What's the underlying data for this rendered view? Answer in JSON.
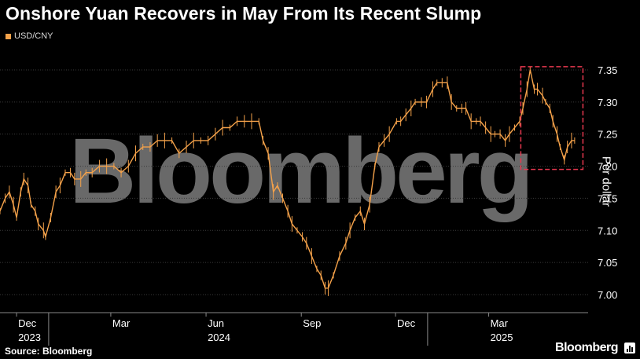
{
  "title": "Onshore Yuan Recovers in May From Its Recent Slump",
  "legend": {
    "label": "USD/CNY",
    "color": "#f5a24a"
  },
  "source": "Source: Bloomberg",
  "brand": "Bloomberg",
  "watermark": "Bloomberg",
  "chart_data": {
    "type": "line",
    "title": "Onshore Yuan Recovers in May From Its Recent Slump",
    "ylabel": "Per dollar",
    "ylim": [
      6.98,
      7.37
    ],
    "y_ticks": [
      7.0,
      7.05,
      7.1,
      7.15,
      7.2,
      7.25,
      7.3,
      7.35
    ],
    "y_tick_labels": [
      "7.00",
      "7.05",
      "7.10",
      "7.15",
      "7.20",
      "7.25",
      "7.30",
      "7.35"
    ],
    "x_ticks": [
      {
        "month": "Dec",
        "year": "2023",
        "date": "2023-12-01"
      },
      {
        "month": "Mar",
        "year": "",
        "date": "2024-03-01"
      },
      {
        "month": "Jun",
        "year": "2024",
        "date": "2024-06-01"
      },
      {
        "month": "Sep",
        "year": "",
        "date": "2024-09-01"
      },
      {
        "month": "Dec",
        "year": "",
        "date": "2024-12-01"
      },
      {
        "month": "Mar",
        "year": "2025",
        "date": "2025-03-01"
      }
    ],
    "grid": true,
    "legend": "top-left",
    "highlight": {
      "x_start": "2025-04-01",
      "x_end": "2025-05-31",
      "y_start": 7.195,
      "y_end": 7.355,
      "color": "#e8384f"
    },
    "series": [
      {
        "name": "USD/CNY",
        "color": "#f5a24a",
        "points": [
          [
            "2023-11-15",
            7.13
          ],
          [
            "2023-11-20",
            7.15
          ],
          [
            "2023-11-24",
            7.16
          ],
          [
            "2023-11-28",
            7.14
          ],
          [
            "2023-12-01",
            7.12
          ],
          [
            "2023-12-05",
            7.16
          ],
          [
            "2023-12-08",
            7.18
          ],
          [
            "2023-12-12",
            7.17
          ],
          [
            "2023-12-15",
            7.14
          ],
          [
            "2023-12-19",
            7.13
          ],
          [
            "2023-12-22",
            7.11
          ],
          [
            "2023-12-27",
            7.1
          ],
          [
            "2023-12-29",
            7.09
          ],
          [
            "2024-01-03",
            7.12
          ],
          [
            "2024-01-08",
            7.16
          ],
          [
            "2024-01-12",
            7.17
          ],
          [
            "2024-01-17",
            7.19
          ],
          [
            "2024-01-22",
            7.19
          ],
          [
            "2024-01-26",
            7.18
          ],
          [
            "2024-02-01",
            7.18
          ],
          [
            "2024-02-06",
            7.19
          ],
          [
            "2024-02-12",
            7.19
          ],
          [
            "2024-02-19",
            7.2
          ],
          [
            "2024-02-26",
            7.2
          ],
          [
            "2024-03-04",
            7.2
          ],
          [
            "2024-03-11",
            7.19
          ],
          [
            "2024-03-18",
            7.2
          ],
          [
            "2024-03-25",
            7.22
          ],
          [
            "2024-04-01",
            7.23
          ],
          [
            "2024-04-08",
            7.23
          ],
          [
            "2024-04-15",
            7.24
          ],
          [
            "2024-04-22",
            7.24
          ],
          [
            "2024-04-29",
            7.24
          ],
          [
            "2024-05-06",
            7.22
          ],
          [
            "2024-05-13",
            7.23
          ],
          [
            "2024-05-20",
            7.24
          ],
          [
            "2024-05-27",
            7.24
          ],
          [
            "2024-06-03",
            7.24
          ],
          [
            "2024-06-10",
            7.25
          ],
          [
            "2024-06-17",
            7.26
          ],
          [
            "2024-06-24",
            7.26
          ],
          [
            "2024-07-01",
            7.27
          ],
          [
            "2024-07-08",
            7.27
          ],
          [
            "2024-07-15",
            7.27
          ],
          [
            "2024-07-22",
            7.27
          ],
          [
            "2024-07-26",
            7.24
          ],
          [
            "2024-07-31",
            7.22
          ],
          [
            "2024-08-05",
            7.16
          ],
          [
            "2024-08-09",
            7.17
          ],
          [
            "2024-08-14",
            7.15
          ],
          [
            "2024-08-19",
            7.13
          ],
          [
            "2024-08-23",
            7.11
          ],
          [
            "2024-08-28",
            7.1
          ],
          [
            "2024-09-02",
            7.09
          ],
          [
            "2024-09-06",
            7.08
          ],
          [
            "2024-09-11",
            7.06
          ],
          [
            "2024-09-16",
            7.04
          ],
          [
            "2024-09-20",
            7.03
          ],
          [
            "2024-09-24",
            7.01
          ],
          [
            "2024-09-27",
            7.01
          ],
          [
            "2024-10-02",
            7.03
          ],
          [
            "2024-10-08",
            7.06
          ],
          [
            "2024-10-14",
            7.08
          ],
          [
            "2024-10-18",
            7.1
          ],
          [
            "2024-10-23",
            7.12
          ],
          [
            "2024-10-28",
            7.13
          ],
          [
            "2024-11-01",
            7.11
          ],
          [
            "2024-11-06",
            7.14
          ],
          [
            "2024-11-11",
            7.2
          ],
          [
            "2024-11-15",
            7.23
          ],
          [
            "2024-11-20",
            7.24
          ],
          [
            "2024-11-25",
            7.25
          ],
          [
            "2024-12-02",
            7.27
          ],
          [
            "2024-12-06",
            7.27
          ],
          [
            "2024-12-11",
            7.28
          ],
          [
            "2024-12-16",
            7.29
          ],
          [
            "2024-12-20",
            7.3
          ],
          [
            "2024-12-26",
            7.3
          ],
          [
            "2024-12-31",
            7.3
          ],
          [
            "2025-01-06",
            7.32
          ],
          [
            "2025-01-10",
            7.33
          ],
          [
            "2025-01-15",
            7.33
          ],
          [
            "2025-01-20",
            7.33
          ],
          [
            "2025-01-24",
            7.3
          ],
          [
            "2025-01-29",
            7.29
          ],
          [
            "2025-02-03",
            7.29
          ],
          [
            "2025-02-07",
            7.29
          ],
          [
            "2025-02-12",
            7.27
          ],
          [
            "2025-02-17",
            7.27
          ],
          [
            "2025-02-21",
            7.27
          ],
          [
            "2025-02-26",
            7.26
          ],
          [
            "2025-03-03",
            7.25
          ],
          [
            "2025-03-07",
            7.25
          ],
          [
            "2025-03-12",
            7.25
          ],
          [
            "2025-03-17",
            7.24
          ],
          [
            "2025-03-21",
            7.25
          ],
          [
            "2025-03-26",
            7.26
          ],
          [
            "2025-03-31",
            7.27
          ],
          [
            "2025-04-03",
            7.29
          ],
          [
            "2025-04-07",
            7.32
          ],
          [
            "2025-04-10",
            7.35
          ],
          [
            "2025-04-14",
            7.32
          ],
          [
            "2025-04-17",
            7.32
          ],
          [
            "2025-04-22",
            7.31
          ],
          [
            "2025-04-25",
            7.3
          ],
          [
            "2025-04-29",
            7.29
          ],
          [
            "2025-05-02",
            7.27
          ],
          [
            "2025-05-06",
            7.25
          ],
          [
            "2025-05-09",
            7.23
          ],
          [
            "2025-05-13",
            7.21
          ],
          [
            "2025-05-16",
            7.23
          ],
          [
            "2025-05-20",
            7.24
          ],
          [
            "2025-05-23",
            7.24
          ]
        ]
      }
    ]
  }
}
